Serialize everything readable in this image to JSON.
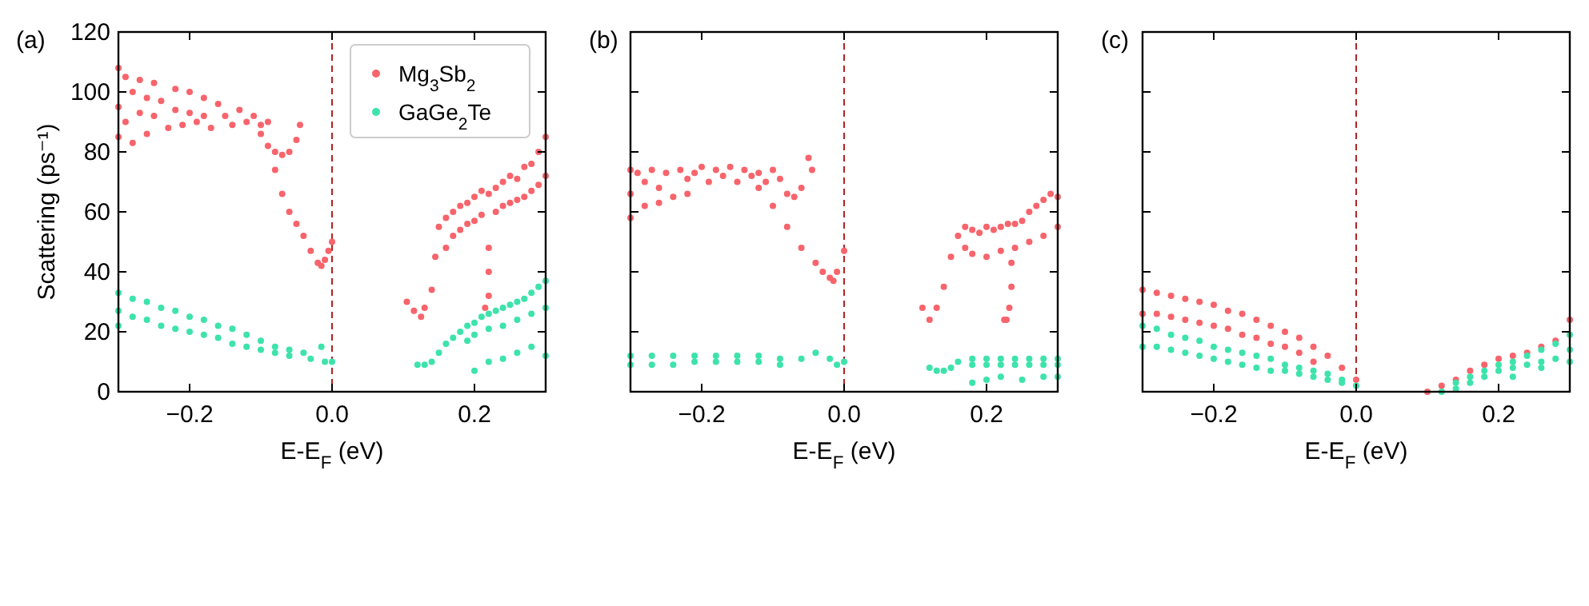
{
  "chart_data": [
    {
      "type": "scatter",
      "title": "(a)",
      "xlabel": "E-E$_{F}$ (eV)",
      "ylabel": "Scattering (ps⁻¹)",
      "xlim": [
        -0.3,
        0.3
      ],
      "ylim": [
        0,
        120
      ],
      "xticks": [
        {
          "value": -0.2,
          "label": "−0.2"
        },
        {
          "value": 0,
          "label": "0.0"
        },
        {
          "value": 0.2,
          "label": "0.2"
        }
      ],
      "yticks": [
        0,
        20,
        40,
        60,
        80,
        100,
        120
      ],
      "legend": "top right",
      "marker": "circle",
      "ref_lines": [
        {
          "axis": "x",
          "value": 0,
          "color": "#b22222",
          "line_style": "dashed"
        }
      ],
      "series": [
        {
          "name": "Mg$_{3}$Sb$_{2}$",
          "color": "#f7646c",
          "x": [
            -0.3,
            -0.3,
            -0.3,
            -0.29,
            -0.29,
            -0.28,
            -0.28,
            -0.27,
            -0.27,
            -0.26,
            -0.26,
            -0.25,
            -0.25,
            -0.24,
            -0.23,
            -0.22,
            -0.22,
            -0.21,
            -0.2,
            -0.2,
            -0.19,
            -0.18,
            -0.18,
            -0.17,
            -0.16,
            -0.15,
            -0.14,
            -0.13,
            -0.12,
            -0.11,
            -0.1,
            -0.1,
            -0.09,
            -0.09,
            -0.08,
            -0.07,
            -0.06,
            -0.05,
            -0.045,
            -0.08,
            -0.07,
            -0.06,
            -0.05,
            -0.04,
            -0.03,
            -0.02,
            -0.015,
            -0.01,
            -0.005,
            0,
            0.105,
            0.115,
            0.125,
            0.13,
            0.14,
            0.145,
            0.15,
            0.16,
            0.16,
            0.17,
            0.17,
            0.18,
            0.18,
            0.19,
            0.19,
            0.2,
            0.2,
            0.21,
            0.21,
            0.22,
            0.22,
            0.22,
            0.22,
            0.23,
            0.23,
            0.24,
            0.24,
            0.25,
            0.25,
            0.26,
            0.26,
            0.27,
            0.27,
            0.28,
            0.28,
            0.29,
            0.29,
            0.3,
            0.3,
            0.215
          ],
          "values": [
            108,
            95,
            85,
            105,
            90,
            100,
            83,
            104,
            93,
            98,
            86,
            103,
            92,
            97,
            88,
            101,
            94,
            89,
            100,
            93,
            90,
            98,
            92,
            88,
            96,
            92,
            89,
            94,
            90,
            92,
            89,
            86,
            90,
            82,
            80,
            79,
            80,
            84,
            89,
            74,
            66,
            60,
            56,
            52,
            47,
            43,
            42,
            44,
            47,
            50,
            30,
            27,
            25,
            28,
            34,
            45,
            55,
            58,
            48,
            60,
            52,
            62,
            54,
            63,
            56,
            65,
            57,
            67,
            59,
            66,
            48,
            40,
            32,
            68,
            60,
            70,
            62,
            72,
            63,
            71,
            64,
            75,
            65,
            76,
            67,
            80,
            69,
            85,
            72,
            28
          ]
        },
        {
          "name": "GaGe$_{2}$Te",
          "color": "#3de3ab",
          "x": [
            -0.3,
            -0.3,
            -0.3,
            -0.28,
            -0.28,
            -0.26,
            -0.26,
            -0.24,
            -0.24,
            -0.22,
            -0.22,
            -0.2,
            -0.2,
            -0.18,
            -0.18,
            -0.16,
            -0.16,
            -0.14,
            -0.14,
            -0.12,
            -0.12,
            -0.1,
            -0.1,
            -0.08,
            -0.08,
            -0.06,
            -0.06,
            -0.04,
            -0.03,
            -0.015,
            -0.01,
            0,
            0.12,
            0.13,
            0.14,
            0.15,
            0.16,
            0.17,
            0.18,
            0.19,
            0.19,
            0.2,
            0.2,
            0.21,
            0.22,
            0.22,
            0.23,
            0.24,
            0.24,
            0.25,
            0.26,
            0.26,
            0.27,
            0.28,
            0.28,
            0.29,
            0.3,
            0.3,
            0.2,
            0.22,
            0.24,
            0.26,
            0.28,
            0.3
          ],
          "values": [
            33,
            27,
            22,
            31,
            25,
            30,
            24,
            28,
            22,
            27,
            21,
            25,
            20,
            24,
            19,
            22,
            18,
            21,
            16,
            19,
            15,
            17,
            14,
            15,
            13,
            14,
            12,
            13,
            11,
            15,
            10,
            10,
            9,
            9,
            10,
            13,
            16,
            18,
            20,
            22,
            17,
            23,
            19,
            25,
            26,
            21,
            27,
            28,
            22,
            29,
            30,
            24,
            31,
            33,
            26,
            35,
            37,
            28,
            7,
            10,
            11,
            13,
            15,
            12
          ]
        }
      ]
    },
    {
      "type": "scatter",
      "title": "(b)",
      "xlabel": "E-E$_{F}$ (eV)",
      "xlim": [
        -0.3,
        0.3
      ],
      "ylim": [
        0,
        120
      ],
      "xticks": [
        {
          "value": -0.2,
          "label": "−0.2"
        },
        {
          "value": 0,
          "label": "0.0"
        },
        {
          "value": 0.2,
          "label": "0.2"
        }
      ],
      "yticks": [
        0,
        20,
        40,
        60,
        80,
        100,
        120
      ],
      "tick_labels": "x",
      "marker": "circle",
      "ref_lines": [
        {
          "axis": "x",
          "value": 0,
          "color": "#b22222",
          "line_style": "dashed"
        }
      ],
      "series": [
        {
          "color": "#f7646c",
          "x": [
            -0.3,
            -0.3,
            -0.3,
            -0.29,
            -0.28,
            -0.28,
            -0.27,
            -0.26,
            -0.26,
            -0.25,
            -0.24,
            -0.23,
            -0.22,
            -0.22,
            -0.21,
            -0.2,
            -0.19,
            -0.18,
            -0.17,
            -0.16,
            -0.15,
            -0.14,
            -0.13,
            -0.12,
            -0.11,
            -0.1,
            -0.09,
            -0.08,
            -0.07,
            -0.06,
            -0.05,
            -0.045,
            -0.12,
            -0.1,
            -0.08,
            -0.06,
            -0.04,
            -0.03,
            -0.02,
            -0.015,
            -0.01,
            0,
            0.11,
            0.12,
            0.13,
            0.14,
            0.15,
            0.16,
            0.17,
            0.17,
            0.18,
            0.18,
            0.19,
            0.2,
            0.2,
            0.21,
            0.22,
            0.22,
            0.23,
            0.24,
            0.24,
            0.25,
            0.26,
            0.26,
            0.27,
            0.28,
            0.28,
            0.29,
            0.3,
            0.3,
            0.235,
            0.235,
            0.232,
            0.228,
            0.225
          ],
          "values": [
            74,
            66,
            58,
            73,
            70,
            62,
            74,
            68,
            63,
            73,
            65,
            74,
            71,
            66,
            73,
            75,
            70,
            74,
            72,
            75,
            70,
            74,
            72,
            73,
            70,
            74,
            71,
            66,
            65,
            68,
            78,
            74,
            68,
            62,
            55,
            48,
            43,
            40,
            38,
            37,
            40,
            47,
            28,
            24,
            28,
            35,
            45,
            52,
            55,
            48,
            54,
            46,
            53,
            55,
            45,
            54,
            55,
            47,
            56,
            56,
            48,
            57,
            60,
            50,
            62,
            64,
            52,
            66,
            65,
            55,
            43,
            35,
            28,
            24,
            24
          ]
        },
        {
          "color": "#3de3ab",
          "x": [
            -0.3,
            -0.3,
            -0.27,
            -0.27,
            -0.24,
            -0.24,
            -0.21,
            -0.21,
            -0.18,
            -0.18,
            -0.15,
            -0.15,
            -0.12,
            -0.12,
            -0.09,
            -0.09,
            -0.06,
            -0.04,
            -0.02,
            -0.01,
            0,
            0.12,
            0.13,
            0.14,
            0.15,
            0.16,
            0.18,
            0.18,
            0.2,
            0.2,
            0.22,
            0.22,
            0.24,
            0.24,
            0.26,
            0.26,
            0.28,
            0.28,
            0.3,
            0.3,
            0.18,
            0.2,
            0.22,
            0.25,
            0.28,
            0.3
          ],
          "values": [
            12,
            9,
            12,
            9,
            12,
            9,
            12,
            10,
            12,
            10,
            12,
            10,
            12,
            10,
            11,
            9,
            11,
            13,
            11,
            9,
            10,
            8,
            7,
            7,
            8,
            10,
            11,
            9,
            11,
            9,
            11,
            9,
            11,
            9,
            11,
            9,
            11,
            9,
            11,
            9,
            3,
            4,
            5,
            4,
            5,
            5
          ]
        }
      ]
    },
    {
      "type": "scatter",
      "title": "(c)",
      "xlabel": "E-E$_{F}$ (eV)",
      "xlim": [
        -0.3,
        0.3
      ],
      "ylim": [
        0,
        120
      ],
      "xticks": [
        {
          "value": -0.2,
          "label": "−0.2"
        },
        {
          "value": 0,
          "label": "0.0"
        },
        {
          "value": 0.2,
          "label": "0.2"
        }
      ],
      "yticks": [
        0,
        20,
        40,
        60,
        80,
        100,
        120
      ],
      "tick_labels": "x",
      "marker": "circle",
      "ref_lines": [
        {
          "axis": "x",
          "value": 0,
          "color": "#b22222",
          "line_style": "dashed"
        }
      ],
      "series": [
        {
          "color": "#f7646c",
          "x": [
            -0.3,
            -0.3,
            -0.28,
            -0.28,
            -0.26,
            -0.26,
            -0.24,
            -0.24,
            -0.22,
            -0.22,
            -0.2,
            -0.2,
            -0.18,
            -0.18,
            -0.16,
            -0.16,
            -0.14,
            -0.14,
            -0.12,
            -0.12,
            -0.1,
            -0.1,
            -0.08,
            -0.08,
            -0.06,
            -0.06,
            -0.04,
            -0.02,
            0,
            0.1,
            0.12,
            0.14,
            0.16,
            0.18,
            0.2,
            0.22,
            0.24,
            0.26,
            0.28,
            0.3
          ],
          "values": [
            34,
            26,
            33,
            26,
            32,
            25,
            31,
            24,
            30,
            23,
            29,
            22,
            27,
            21,
            26,
            19,
            24,
            18,
            22,
            16,
            20,
            15,
            18,
            13,
            15,
            10,
            12,
            8,
            4,
            0,
            2,
            4,
            7,
            9,
            11,
            12,
            13,
            15,
            17,
            24
          ]
        },
        {
          "color": "#3de3ab",
          "x": [
            -0.3,
            -0.3,
            -0.28,
            -0.28,
            -0.26,
            -0.26,
            -0.24,
            -0.24,
            -0.22,
            -0.22,
            -0.2,
            -0.2,
            -0.18,
            -0.18,
            -0.16,
            -0.16,
            -0.14,
            -0.14,
            -0.12,
            -0.12,
            -0.1,
            -0.1,
            -0.08,
            -0.08,
            -0.06,
            -0.06,
            -0.04,
            -0.04,
            -0.02,
            -0.02,
            0,
            0.12,
            0.14,
            0.14,
            0.16,
            0.16,
            0.18,
            0.18,
            0.2,
            0.2,
            0.22,
            0.22,
            0.24,
            0.24,
            0.26,
            0.26,
            0.28,
            0.28,
            0.3,
            0.3,
            0.22,
            0.26,
            0.3
          ],
          "values": [
            22,
            15,
            21,
            15,
            19,
            14,
            18,
            13,
            17,
            12,
            15,
            11,
            14,
            10,
            13,
            9,
            12,
            8,
            11,
            7,
            9,
            7,
            8,
            6,
            7,
            5,
            6,
            4,
            4,
            3,
            2,
            0,
            3,
            1,
            5,
            3,
            7,
            5,
            9,
            7,
            10,
            8,
            12,
            9,
            14,
            10,
            16,
            11,
            19,
            14,
            5,
            8,
            10
          ]
        }
      ]
    }
  ]
}
